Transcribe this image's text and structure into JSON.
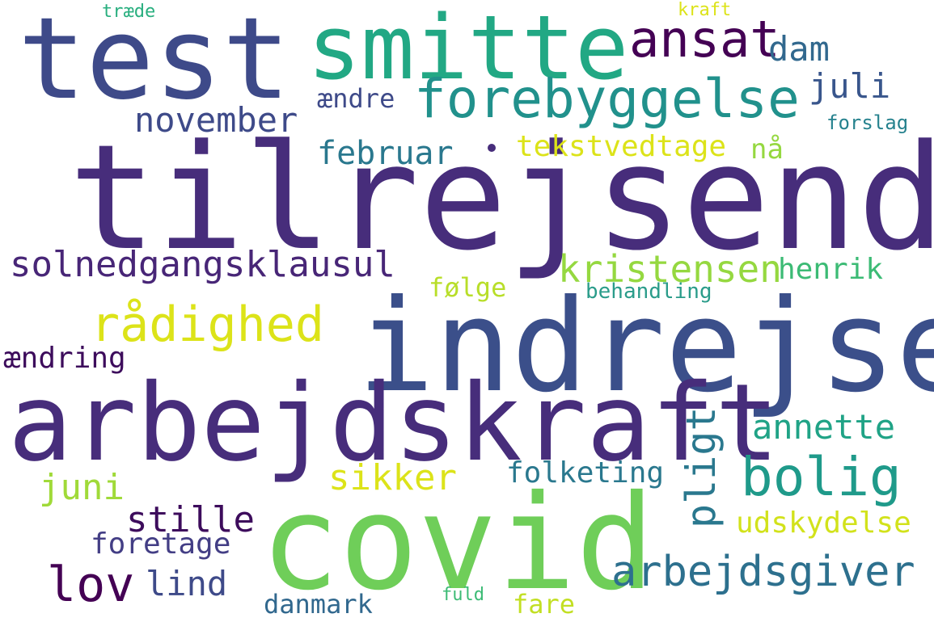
{
  "words": [
    {
      "text": "tilrejsende",
      "color": "#472d7b"
    },
    {
      "text": "indrejse",
      "color": "#3b4f8a"
    },
    {
      "text": "covid",
      "color": "#6fce59"
    },
    {
      "text": "arbejdskraft",
      "color": "#472d7b"
    },
    {
      "text": "test",
      "color": "#3e4a89"
    },
    {
      "text": "smitte",
      "color": "#22a884"
    },
    {
      "text": "forebyggelse",
      "color": "#21918c"
    },
    {
      "text": "ansat",
      "color": "#440154"
    },
    {
      "text": "dam",
      "color": "#31688e"
    },
    {
      "text": "juli",
      "color": "#39568c"
    },
    {
      "text": "november",
      "color": "#3e4a89"
    },
    {
      "text": "februar",
      "color": "#2a788e"
    },
    {
      "text": "tekstvedtage",
      "color": "#dce319"
    },
    {
      "text": "nå",
      "color": "#95d840"
    },
    {
      "text": "ændre",
      "color": "#3e4a89"
    },
    {
      "text": "forslag",
      "color": "#26828e"
    },
    {
      "text": "kraft",
      "color": "#dce319"
    },
    {
      "text": "træde",
      "color": "#29af7f"
    },
    {
      "text": "solnedgangsklausul",
      "color": "#482677"
    },
    {
      "text": "kristensen",
      "color": "#95d840"
    },
    {
      "text": "henrik",
      "color": "#3cbb75"
    },
    {
      "text": "følge",
      "color": "#b8de29"
    },
    {
      "text": "behandling",
      "color": "#2a9c8a"
    },
    {
      "text": "rådighed",
      "color": "#dce319"
    },
    {
      "text": "ændring",
      "color": "#3d0c5c"
    },
    {
      "text": "annette",
      "color": "#20a386"
    },
    {
      "text": "pligt",
      "color": "#2a788e"
    },
    {
      "text": "bolig",
      "color": "#1f9a8a"
    },
    {
      "text": "sikker",
      "color": "#dce319"
    },
    {
      "text": "juni",
      "color": "#a0da39"
    },
    {
      "text": "folketing",
      "color": "#2a788e"
    },
    {
      "text": "stille",
      "color": "#3d0c5c"
    },
    {
      "text": "udskydelse",
      "color": "#d2e21b"
    },
    {
      "text": "foretage",
      "color": "#433e85"
    },
    {
      "text": "arbejdsgiver",
      "color": "#2d708e"
    },
    {
      "text": "lov",
      "color": "#440154"
    },
    {
      "text": "lind",
      "color": "#3e4a89"
    },
    {
      "text": "danmark",
      "color": "#31688e"
    },
    {
      "text": "fuld",
      "color": "#3cbb75"
    },
    {
      "text": "fare",
      "color": "#c2df23"
    }
  ]
}
